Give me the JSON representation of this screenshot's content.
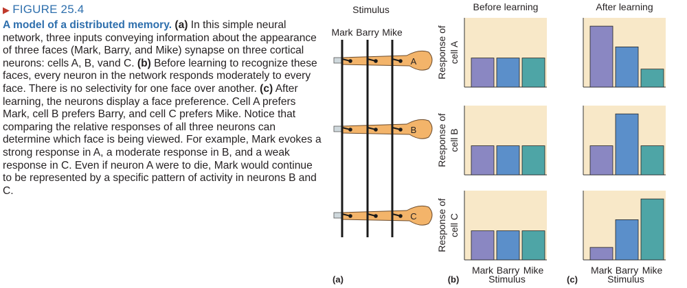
{
  "figure": {
    "label": "FIGURE 25.4",
    "caption_title": "A model of a distributed memory.",
    "caption_parts": [
      {
        "type": "b",
        "text": " (a)"
      },
      {
        "type": "t",
        "text": " In this simple neural network, three inputs conveying information about the appearance of three faces (Mark, Barry, and Mike) synapse on three cortical neurons: cells A, B, vand C. "
      },
      {
        "type": "b",
        "text": "(b)"
      },
      {
        "type": "t",
        "text": " Before learning to recognize these faces, every neuron in the network responds moderately to every face. There is no selectivity for one face over another. "
      },
      {
        "type": "b",
        "text": "(c)"
      },
      {
        "type": "t",
        "text": " After learning, the neurons display a face preference. Cell A prefers Mark, cell B prefers Barry, and cell C prefers Mike. Notice that comparing the relative responses of all three neurons can determine which face is being viewed. For example, Mark evokes a strong response in A, a moderate response in B, and a weak response in C. Even if neuron A were to die, Mark would continue to be represented by a specific pattern of activity in neurons B and C."
      }
    ]
  },
  "network": {
    "title": "Stimulus",
    "inputs": [
      "Mark",
      "Barry",
      "Mike"
    ],
    "cells": [
      "A",
      "B",
      "C"
    ],
    "panel_label": "(a)"
  },
  "colors": {
    "mark": "#8a87c2",
    "barry": "#5b8fca",
    "mike": "#4ea5a6",
    "panel_bg": "#f8e8c8",
    "neuron": "#f3b46a",
    "axon_fill": "#cfd8dc"
  },
  "chart_data": [
    {
      "type": "bar",
      "title": "Before learning",
      "categories": [
        "Mark",
        "Barry",
        "Mike"
      ],
      "panels": [
        {
          "ylabel": "Response of cell A",
          "values": [
            42,
            42,
            42
          ]
        },
        {
          "ylabel": "Response of cell B",
          "values": [
            42,
            42,
            42
          ]
        },
        {
          "ylabel": "Response of cell C",
          "values": [
            42,
            42,
            42
          ]
        }
      ],
      "xlabel": "Stimulus",
      "panel_label": "(b)",
      "ylim": [
        0,
        100
      ]
    },
    {
      "type": "bar",
      "title": "After learning",
      "categories": [
        "Mark",
        "Barry",
        "Mike"
      ],
      "panels": [
        {
          "ylabel": "Response of cell A",
          "values": [
            88,
            58,
            26
          ]
        },
        {
          "ylabel": "Response of cell B",
          "values": [
            42,
            88,
            42
          ]
        },
        {
          "ylabel": "Response of cell C",
          "values": [
            18,
            58,
            88
          ]
        }
      ],
      "xlabel": "Stimulus",
      "panel_label": "(c)",
      "ylim": [
        0,
        100
      ]
    }
  ]
}
